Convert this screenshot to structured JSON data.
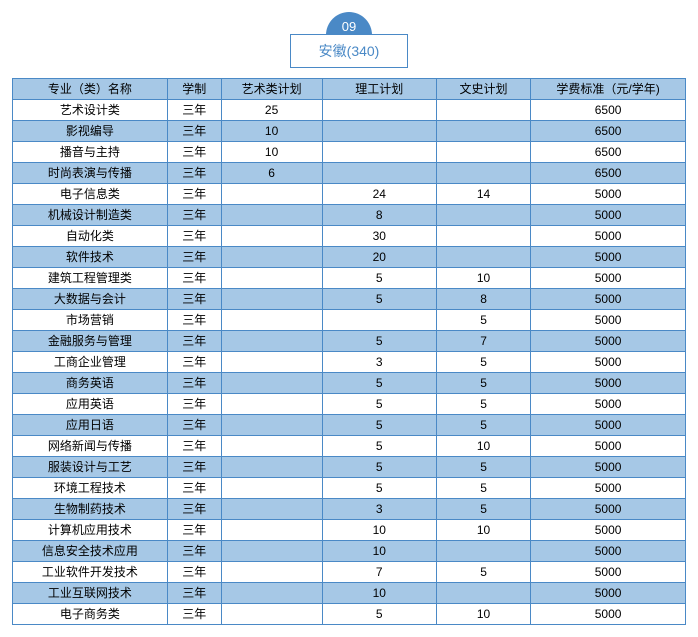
{
  "colors": {
    "badge_bg": "#4a89c6",
    "title_border": "#4a89c6",
    "title_text": "#4a89c6",
    "table_border": "#4a89c6",
    "header_bg": "#a6c8e6",
    "row_alt_bg": "#a6c8e6",
    "row_bg": "#ffffff",
    "text": "#000000"
  },
  "header": {
    "badge": "09",
    "title": "安徽(340)"
  },
  "table": {
    "columns": [
      "专业（类）名称",
      "学制",
      "艺术类计划",
      "理工计划",
      "文史计划",
      "学费标准（元/学年)"
    ],
    "rows": [
      [
        "艺术设计类",
        "三年",
        "25",
        "",
        "",
        "6500"
      ],
      [
        "影视编导",
        "三年",
        "10",
        "",
        "",
        "6500"
      ],
      [
        "播音与主持",
        "三年",
        "10",
        "",
        "",
        "6500"
      ],
      [
        "时尚表演与传播",
        "三年",
        "6",
        "",
        "",
        "6500"
      ],
      [
        "电子信息类",
        "三年",
        "",
        "24",
        "14",
        "5000"
      ],
      [
        "机械设计制造类",
        "三年",
        "",
        "8",
        "",
        "5000"
      ],
      [
        "自动化类",
        "三年",
        "",
        "30",
        "",
        "5000"
      ],
      [
        "软件技术",
        "三年",
        "",
        "20",
        "",
        "5000"
      ],
      [
        "建筑工程管理类",
        "三年",
        "",
        "5",
        "10",
        "5000"
      ],
      [
        "大数据与会计",
        "三年",
        "",
        "5",
        "8",
        "5000"
      ],
      [
        "市场营销",
        "三年",
        "",
        "",
        "5",
        "5000"
      ],
      [
        "金融服务与管理",
        "三年",
        "",
        "5",
        "7",
        "5000"
      ],
      [
        "工商企业管理",
        "三年",
        "",
        "3",
        "5",
        "5000"
      ],
      [
        "商务英语",
        "三年",
        "",
        "5",
        "5",
        "5000"
      ],
      [
        "应用英语",
        "三年",
        "",
        "5",
        "5",
        "5000"
      ],
      [
        "应用日语",
        "三年",
        "",
        "5",
        "5",
        "5000"
      ],
      [
        "网络新闻与传播",
        "三年",
        "",
        "5",
        "10",
        "5000"
      ],
      [
        "服装设计与工艺",
        "三年",
        "",
        "5",
        "5",
        "5000"
      ],
      [
        "环境工程技术",
        "三年",
        "",
        "5",
        "5",
        "5000"
      ],
      [
        "生物制药技术",
        "三年",
        "",
        "3",
        "5",
        "5000"
      ],
      [
        "计算机应用技术",
        "三年",
        "",
        "10",
        "10",
        "5000"
      ],
      [
        "信息安全技术应用",
        "三年",
        "",
        "10",
        "",
        "5000"
      ],
      [
        "工业软件开发技术",
        "三年",
        "",
        "7",
        "5",
        "5000"
      ],
      [
        "工业互联网技术",
        "三年",
        "",
        "10",
        "",
        "5000"
      ],
      [
        "电子商务类",
        "三年",
        "",
        "5",
        "10",
        "5000"
      ]
    ]
  }
}
